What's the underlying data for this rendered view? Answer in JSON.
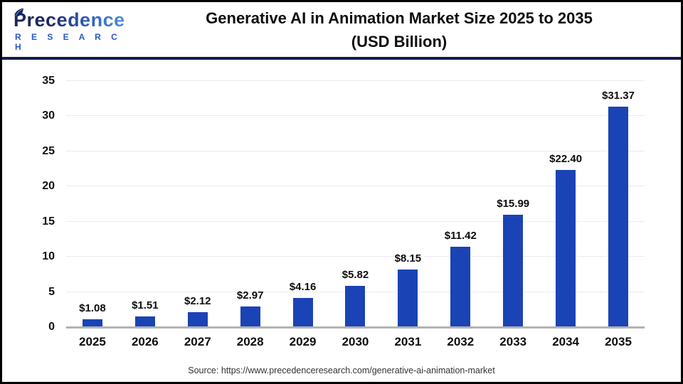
{
  "header": {
    "logo": {
      "name": "Precedence",
      "subname": "R E S E A R C H"
    },
    "title_line1": "Generative AI in Animation Market Size 2025 to 2035",
    "title_line2": "(USD Billion)"
  },
  "chart_data": {
    "type": "bar",
    "title": "Generative AI in Animation Market Size 2025 to 2035 (USD Billion)",
    "categories": [
      "2025",
      "2026",
      "2027",
      "2028",
      "2029",
      "2030",
      "2031",
      "2032",
      "2033",
      "2034",
      "2035"
    ],
    "values": [
      1.08,
      1.51,
      2.12,
      2.97,
      4.16,
      5.82,
      8.15,
      11.42,
      15.99,
      22.4,
      31.37
    ],
    "labels": [
      "$1.08",
      "$1.51",
      "$2.12",
      "$2.97",
      "$4.16",
      "$5.82",
      "$8.15",
      "$11.42",
      "$15.99",
      "$22.40",
      "$31.37"
    ],
    "xlabel": "",
    "ylabel": "",
    "ylim": [
      0,
      35
    ],
    "yticks": [
      0,
      5,
      10,
      15,
      20,
      25,
      30,
      35
    ],
    "grid": true,
    "legend_position": "none",
    "bar_color": "#1a43b5",
    "separator_color": "#131b4d",
    "gridline_color": "#ebebeb",
    "baseline_color": "#b3b3b3"
  },
  "footer": {
    "source": "Source: https://www.precedenceresearch.com/generative-ai-animation-market"
  }
}
